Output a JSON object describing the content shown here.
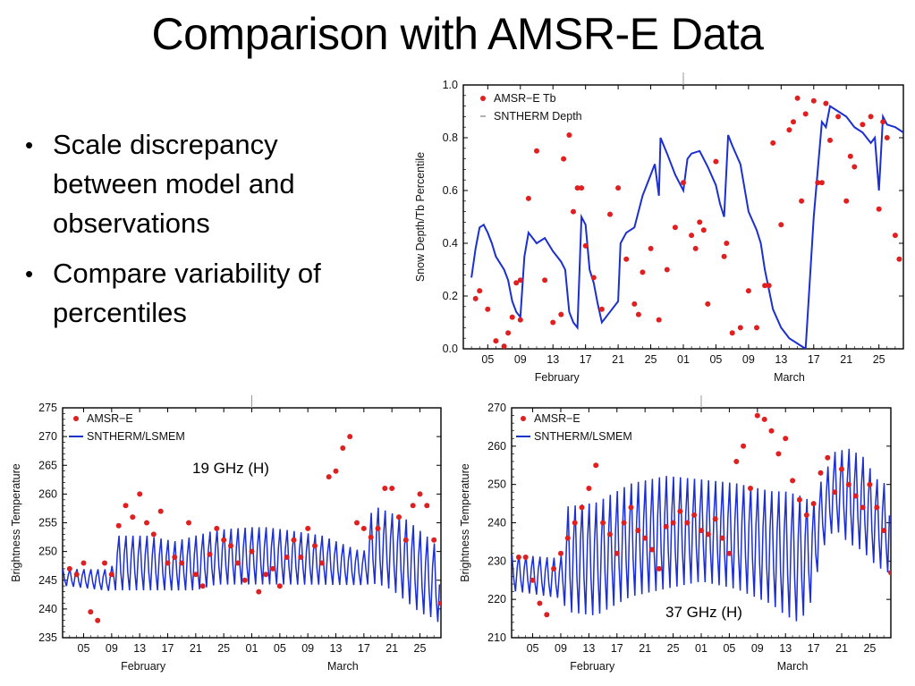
{
  "slide": {
    "title": "Comparison with AMSR-E Data",
    "bullets": [
      "Scale discrepancy between model and observations",
      "Compare variability of percentiles"
    ]
  },
  "colors": {
    "model": "#1c2fd0",
    "obs": "#e02020",
    "frame": "#000000"
  },
  "chart_data": [
    {
      "id": "percentile",
      "type": "line",
      "ylabel": "Snow Depth/Tb Percentile",
      "xlabel_months": [
        "February",
        "March"
      ],
      "x_tick_labels": [
        "05",
        "09",
        "13",
        "17",
        "21",
        "25",
        "01",
        "05",
        "09",
        "13",
        "17",
        "21",
        "25"
      ],
      "xlim_days": [
        33,
        87
      ],
      "ylim": [
        0,
        1
      ],
      "y_ticks": [
        "0.0",
        "0.2",
        "0.4",
        "0.6",
        "0.8",
        "1.0"
      ],
      "legend": [
        "AMSR−E Tb",
        "SNTHERM Depth"
      ],
      "legend_position": "top-left",
      "series": [
        {
          "name": "SNTHERM Depth",
          "style": "line",
          "x": [
            34,
            34.5,
            35,
            35.5,
            36,
            36.5,
            37,
            38,
            38.5,
            39,
            39.5,
            40,
            40.5,
            41,
            42,
            43,
            44,
            44.5,
            45,
            45.5,
            46,
            46.5,
            47,
            47.5,
            48,
            48.5,
            49,
            49.5,
            50,
            51,
            52,
            52.3,
            53,
            54,
            55,
            56,
            56.5,
            57,
            57.2,
            58,
            59,
            60,
            60.5,
            61,
            62,
            63,
            64,
            64.5,
            65,
            65.5,
            66,
            67,
            68,
            69,
            69.5,
            70,
            71,
            72,
            73,
            74,
            75,
            76,
            77,
            77.5,
            78,
            79,
            80,
            81,
            82,
            83,
            83.5,
            84,
            84.5,
            85,
            86,
            87
          ],
          "values": [
            0.27,
            0.38,
            0.46,
            0.47,
            0.44,
            0.4,
            0.35,
            0.3,
            0.26,
            0.18,
            0.14,
            0.12,
            0.35,
            0.44,
            0.4,
            0.42,
            0.37,
            0.35,
            0.33,
            0.3,
            0.14,
            0.1,
            0.08,
            0.5,
            0.47,
            0.3,
            0.25,
            0.17,
            0.1,
            0.14,
            0.18,
            0.4,
            0.44,
            0.46,
            0.58,
            0.66,
            0.7,
            0.58,
            0.8,
            0.74,
            0.66,
            0.6,
            0.72,
            0.74,
            0.75,
            0.69,
            0.62,
            0.55,
            0.5,
            0.81,
            0.77,
            0.7,
            0.52,
            0.45,
            0.4,
            0.3,
            0.15,
            0.08,
            0.04,
            0.02,
            0.0,
            0.5,
            0.86,
            0.84,
            0.92,
            0.9,
            0.88,
            0.84,
            0.82,
            0.78,
            0.8,
            0.6,
            0.88,
            0.85,
            0.84,
            0.82
          ]
        },
        {
          "name": "AMSR−E Tb",
          "style": "points",
          "x": [
            34.5,
            35,
            36,
            37,
            38,
            38.5,
            39,
            39.5,
            40,
            40,
            41,
            42,
            43,
            44,
            45,
            45.3,
            46,
            46.5,
            47,
            47.5,
            48,
            49,
            50,
            51,
            52,
            53,
            54,
            54.5,
            55,
            56,
            57,
            58,
            59,
            60,
            61,
            61.5,
            62,
            62.5,
            63,
            64,
            65,
            65.3,
            66,
            67,
            68,
            69,
            70,
            70.5,
            71,
            72,
            73,
            73.5,
            74,
            74.5,
            75,
            76,
            76.5,
            77,
            77.5,
            78,
            79,
            80,
            80.5,
            81,
            82,
            83,
            84,
            84.5,
            85,
            86,
            86.5
          ],
          "values": [
            0.19,
            0.22,
            0.15,
            0.03,
            0.01,
            0.06,
            0.12,
            0.25,
            0.26,
            0.11,
            0.57,
            0.75,
            0.26,
            0.1,
            0.13,
            0.72,
            0.81,
            0.52,
            0.61,
            0.61,
            0.39,
            0.27,
            0.15,
            0.51,
            0.61,
            0.34,
            0.17,
            0.13,
            0.29,
            0.38,
            0.11,
            0.3,
            0.46,
            0.63,
            0.43,
            0.38,
            0.48,
            0.45,
            0.17,
            0.71,
            0.35,
            0.4,
            0.06,
            0.08,
            0.22,
            0.08,
            0.24,
            0.24,
            0.78,
            0.47,
            0.83,
            0.86,
            0.95,
            0.56,
            0.89,
            0.94,
            0.63,
            0.63,
            0.93,
            0.79,
            0.88,
            0.56,
            0.73,
            0.69,
            0.85,
            0.88,
            0.53,
            0.86,
            0.8,
            0.43,
            0.34
          ]
        }
      ]
    },
    {
      "id": "tb19",
      "type": "line",
      "annotation": "19 GHz (H)",
      "ylabel": "Brightness Temperature",
      "xlabel_months": [
        "February",
        "March"
      ],
      "x_tick_labels": [
        "05",
        "09",
        "13",
        "17",
        "21",
        "25",
        "01",
        "05",
        "09",
        "13",
        "17",
        "21",
        "25"
      ],
      "xlim_days": [
        33,
        87
      ],
      "ylim": [
        235,
        275
      ],
      "y_ticks": [
        "235",
        "240",
        "245",
        "250",
        "255",
        "260",
        "265",
        "270",
        "275"
      ],
      "legend": [
        "AMSR−E",
        "SNTHERM/LSMEM"
      ],
      "legend_position": "top-left",
      "series": [
        {
          "name": "SNTHERM/LSMEM",
          "style": "diurnal",
          "x_days": [
            33,
            40,
            40.5,
            45,
            49,
            52,
            55,
            60,
            62,
            65,
            70,
            72,
            74,
            76,
            77,
            78,
            80,
            82,
            84,
            86,
            87
          ],
          "high": [
            247,
            247,
            253,
            253,
            252,
            253,
            254,
            254.5,
            254.5,
            254,
            253,
            252,
            251,
            250,
            257,
            258,
            257,
            256,
            254,
            252,
            247
          ],
          "low": [
            244,
            243,
            243,
            243,
            243,
            243,
            244,
            244,
            244,
            244,
            244,
            244,
            244,
            244,
            244,
            244,
            243,
            241,
            239,
            238,
            237
          ],
          "note": "daily oscillation between low and high envelopes"
        },
        {
          "name": "AMSR−E",
          "style": "points",
          "x": [
            34,
            35,
            36,
            37,
            38,
            39,
            40,
            41,
            42,
            43,
            44,
            45,
            46,
            47,
            48,
            49,
            50,
            51,
            52,
            53,
            54,
            55,
            56,
            57,
            58,
            59,
            60,
            61,
            62,
            63,
            64,
            65,
            66,
            67,
            68,
            69,
            70,
            71,
            72,
            73,
            74,
            75,
            76,
            77,
            78,
            79,
            80,
            81,
            82,
            83,
            84,
            85,
            86,
            87
          ],
          "values": [
            247,
            246,
            248,
            239.5,
            238,
            248,
            246,
            254.5,
            258,
            256,
            260,
            255,
            253,
            257,
            248,
            249,
            248,
            255,
            246,
            244,
            249.5,
            254,
            252,
            251,
            248,
            245,
            250,
            243,
            246,
            247,
            244,
            249,
            252,
            249,
            254,
            251,
            248,
            263,
            264,
            268,
            270,
            255,
            254,
            252.5,
            254,
            261,
            261,
            256,
            252,
            258,
            260,
            258,
            252,
            241
          ]
        }
      ]
    },
    {
      "id": "tb37",
      "type": "line",
      "annotation": "37 GHz (H)",
      "ylabel": "Brightness Temperature",
      "xlabel_months": [
        "February",
        "March"
      ],
      "x_tick_labels": [
        "05",
        "09",
        "13",
        "17",
        "21",
        "25",
        "01",
        "05",
        "09",
        "13",
        "17",
        "21",
        "25"
      ],
      "xlim_days": [
        33,
        87
      ],
      "ylim": [
        210,
        270
      ],
      "y_ticks": [
        "210",
        "220",
        "230",
        "240",
        "250",
        "260",
        "270"
      ],
      "legend": [
        "AMSR−E",
        "SNTHERM/LSMEM"
      ],
      "legend_position": "top-left",
      "series": [
        {
          "name": "SNTHERM/LSMEM",
          "style": "diurnal",
          "x_days": [
            33,
            40,
            41,
            45,
            50,
            55,
            60,
            65,
            70,
            72,
            74,
            76,
            77,
            79,
            81,
            83,
            85,
            87
          ],
          "high": [
            232,
            231,
            245,
            246,
            251,
            253,
            252,
            251,
            249,
            249,
            248,
            246,
            251,
            259,
            260,
            258,
            252,
            250
          ],
          "low": [
            222,
            220,
            216,
            215,
            220,
            222,
            224,
            222,
            218,
            215,
            213,
            220,
            232,
            238,
            234,
            232,
            228,
            226
          ],
          "note": "daily oscillation between low and high envelopes"
        },
        {
          "name": "AMSR−E",
          "style": "points",
          "x": [
            34,
            35,
            36,
            37,
            38,
            39,
            40,
            41,
            42,
            43,
            44,
            45,
            46,
            47,
            48,
            49,
            50,
            51,
            52,
            53,
            54,
            55,
            56,
            57,
            58,
            59,
            60,
            61,
            62,
            63,
            64,
            65,
            66,
            67,
            68,
            69,
            70,
            71,
            72,
            73,
            74,
            75,
            76,
            77,
            78,
            79,
            80,
            81,
            82,
            83,
            84,
            85,
            86,
            87
          ],
          "values": [
            231,
            231,
            225,
            219,
            216,
            228,
            232,
            236,
            240,
            244,
            249,
            255,
            240,
            237,
            232,
            240,
            244,
            238,
            236,
            233,
            228,
            239,
            240,
            243,
            240,
            242,
            238,
            237,
            241,
            236,
            232,
            256,
            260,
            249,
            268,
            267,
            264,
            258,
            262,
            251,
            246,
            242,
            245,
            253,
            257,
            248,
            254,
            250,
            247,
            244,
            250,
            244,
            238,
            227
          ]
        }
      ]
    }
  ]
}
